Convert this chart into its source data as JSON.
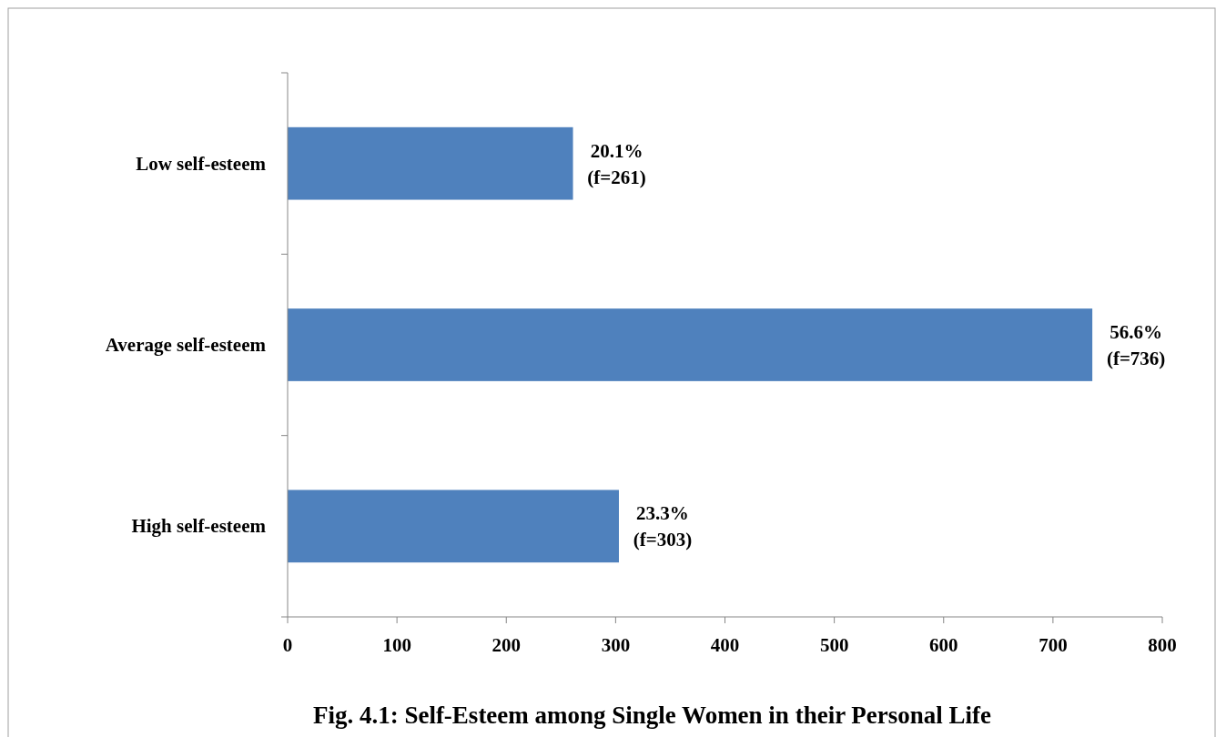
{
  "chart_data": {
    "type": "bar",
    "orientation": "horizontal",
    "title": "Fig. 4.1: Self-Esteem among Single Women in their Personal Life",
    "categories": [
      "Low self-esteem",
      "Average self-esteem",
      "High self-esteem"
    ],
    "values": [
      261,
      736,
      303
    ],
    "color": "#4f81bd",
    "value_labels": [
      "20.1%\n(f=261)",
      "56.6%\n(f=736)",
      "23.3%\n(f=303)"
    ],
    "xlim": [
      0,
      800
    ],
    "xticks": [
      0,
      100,
      200,
      300,
      400,
      500,
      600,
      700,
      800
    ]
  }
}
